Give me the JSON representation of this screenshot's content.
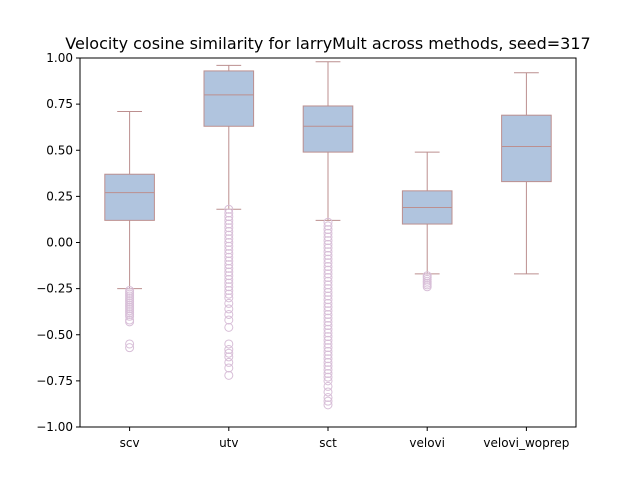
{
  "chart_data": {
    "type": "box",
    "title": "Velocity cosine similarity for larryMult across methods, seed=317",
    "xlabel": "",
    "ylabel": "",
    "ylim": [
      -1.0,
      1.0
    ],
    "yticks": [
      "1.00",
      "0.75",
      "0.50",
      "0.25",
      "0.00",
      "−0.25",
      "−0.50",
      "−0.75",
      "−1.00"
    ],
    "ytick_values": [
      1.0,
      0.75,
      0.5,
      0.25,
      0.0,
      -0.25,
      -0.5,
      -0.75,
      -1.0
    ],
    "grid": false,
    "colors": {
      "box_fill": "#b0c4de",
      "edge": "#bc8f8f",
      "outlier": "#d8bfd8"
    },
    "categories": [
      "scv",
      "utv",
      "sct",
      "velovi",
      "velovi_woprep"
    ],
    "boxes": [
      {
        "category": "scv",
        "whisker_low": -0.25,
        "q1": 0.12,
        "median": 0.27,
        "q3": 0.37,
        "whisker_high": 0.71,
        "outliers": [
          -0.26,
          -0.27,
          -0.28,
          -0.29,
          -0.3,
          -0.31,
          -0.32,
          -0.33,
          -0.34,
          -0.35,
          -0.36,
          -0.37,
          -0.38,
          -0.39,
          -0.4,
          -0.42,
          -0.43,
          -0.55,
          -0.57
        ]
      },
      {
        "category": "utv",
        "whisker_low": 0.18,
        "q1": 0.63,
        "median": 0.8,
        "q3": 0.93,
        "whisker_high": 0.96,
        "outliers": [
          0.18,
          0.16,
          0.14,
          0.12,
          0.1,
          0.08,
          0.06,
          0.04,
          0.02,
          0.0,
          -0.02,
          -0.04,
          -0.06,
          -0.08,
          -0.1,
          -0.12,
          -0.14,
          -0.16,
          -0.18,
          -0.2,
          -0.22,
          -0.24,
          -0.26,
          -0.28,
          -0.3,
          -0.33,
          -0.36,
          -0.39,
          -0.42,
          -0.46,
          -0.55,
          -0.58,
          -0.6,
          -0.62,
          -0.65,
          -0.68,
          -0.72
        ]
      },
      {
        "category": "sct",
        "whisker_low": 0.12,
        "q1": 0.49,
        "median": 0.63,
        "q3": 0.74,
        "whisker_high": 0.98,
        "outliers": [
          0.11,
          0.09,
          0.07,
          0.05,
          0.03,
          0.01,
          -0.01,
          -0.03,
          -0.05,
          -0.07,
          -0.09,
          -0.11,
          -0.13,
          -0.15,
          -0.17,
          -0.19,
          -0.21,
          -0.23,
          -0.25,
          -0.27,
          -0.29,
          -0.31,
          -0.33,
          -0.35,
          -0.37,
          -0.39,
          -0.41,
          -0.43,
          -0.45,
          -0.47,
          -0.49,
          -0.51,
          -0.53,
          -0.55,
          -0.57,
          -0.59,
          -0.61,
          -0.63,
          -0.65,
          -0.67,
          -0.69,
          -0.71,
          -0.73,
          -0.75,
          -0.78,
          -0.81,
          -0.84,
          -0.86,
          -0.88
        ]
      },
      {
        "category": "velovi",
        "whisker_low": -0.17,
        "q1": 0.1,
        "median": 0.19,
        "q3": 0.28,
        "whisker_high": 0.49,
        "outliers": [
          -0.18,
          -0.19,
          -0.2,
          -0.21,
          -0.22,
          -0.23,
          -0.24
        ]
      },
      {
        "category": "velovi_woprep",
        "whisker_low": -0.17,
        "q1": 0.33,
        "median": 0.52,
        "q3": 0.69,
        "whisker_high": 0.92,
        "outliers": []
      }
    ]
  }
}
